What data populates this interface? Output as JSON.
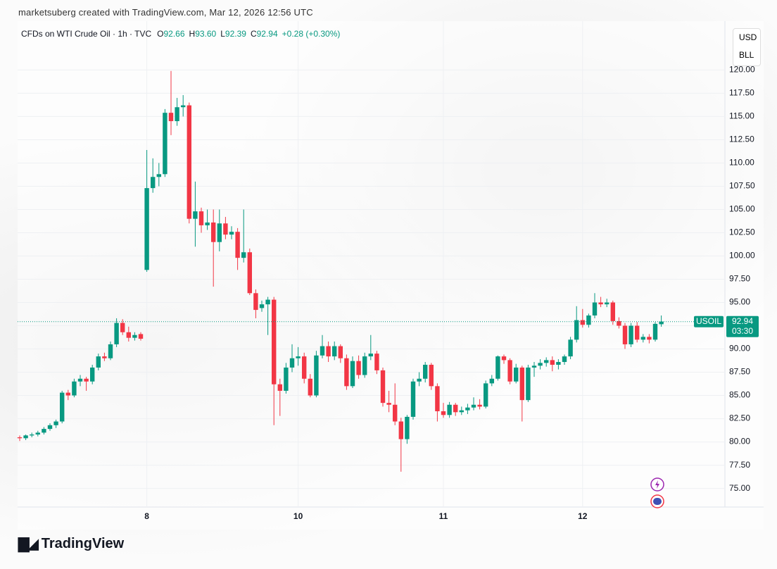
{
  "header": {
    "watermark": "marketsuberg created with TradingView.com, Mar 12, 2026 12:56 UTC",
    "symbol": "CFDs on WTI Crude Oil · 1h · TVC",
    "fields": [
      {
        "key": "O",
        "value": "92.66"
      },
      {
        "key": "H",
        "value": "93.60"
      },
      {
        "key": "L",
        "value": "92.39"
      },
      {
        "key": "C",
        "value": "92.94"
      }
    ],
    "change": "+0.28 (+0.30%)",
    "units": [
      "USD",
      "BLL"
    ],
    "brand": "TradingView"
  },
  "chart_data": {
    "type": "candlestick",
    "up_color": "#089981",
    "down_color": "#f23645",
    "ticker": "USOIL",
    "countdown": "03:30",
    "ylim": [
      73,
      124.5
    ],
    "yticks": [
      {
        "value": 75,
        "label": "75.00"
      },
      {
        "value": 77.5,
        "label": "77.50"
      },
      {
        "value": 80,
        "label": "80.00"
      },
      {
        "value": 82.5,
        "label": "82.50"
      },
      {
        "value": 85,
        "label": "85.00"
      },
      {
        "value": 87.5,
        "label": "87.50"
      },
      {
        "value": 90,
        "label": "90.00"
      },
      {
        "value": 92.5,
        "label": "92.50"
      },
      {
        "value": 95,
        "label": "95.00"
      },
      {
        "value": 97.5,
        "label": "97.50"
      },
      {
        "value": 100,
        "label": "100.00"
      },
      {
        "value": 102.5,
        "label": "102.50"
      },
      {
        "value": 105,
        "label": "105.00"
      },
      {
        "value": 107.5,
        "label": "107.50"
      },
      {
        "value": 110,
        "label": "110.00"
      },
      {
        "value": 112.5,
        "label": "112.50"
      },
      {
        "value": 115,
        "label": "115.00"
      },
      {
        "value": 117.5,
        "label": "117.50"
      },
      {
        "value": 120,
        "label": "120.00"
      }
    ],
    "categories": [
      null,
      null,
      null,
      null,
      null,
      null,
      null,
      null,
      null,
      null,
      null,
      null,
      null,
      null,
      null,
      null,
      null,
      null,
      null,
      null,
      null,
      "8",
      null,
      null,
      null,
      null,
      null,
      null,
      null,
      null,
      null,
      null,
      null,
      null,
      null,
      null,
      null,
      null,
      null,
      null,
      null,
      null,
      null,
      null,
      null,
      null,
      "10",
      null,
      null,
      null,
      null,
      null,
      null,
      null,
      null,
      null,
      null,
      null,
      null,
      null,
      null,
      null,
      null,
      null,
      null,
      null,
      null,
      null,
      null,
      null,
      "11",
      null,
      null,
      null,
      null,
      null,
      null,
      null,
      null,
      null,
      null,
      null,
      null,
      null,
      null,
      null,
      null,
      null,
      null,
      null,
      null,
      null,
      null,
      "12",
      null,
      null,
      null,
      null,
      null,
      null,
      null,
      null,
      null,
      null,
      null,
      null,
      null
    ],
    "ohlc": [
      [
        80.5,
        80.7,
        80.1,
        80.4
      ],
      [
        80.4,
        80.8,
        80.2,
        80.7
      ],
      [
        80.7,
        81.0,
        80.5,
        80.8
      ],
      [
        80.8,
        81.2,
        80.6,
        81.0
      ],
      [
        81.0,
        81.6,
        80.8,
        81.4
      ],
      [
        81.4,
        82.0,
        81.2,
        81.8
      ],
      [
        81.8,
        82.4,
        81.5,
        82.2
      ],
      [
        82.2,
        85.5,
        82.0,
        85.3
      ],
      [
        85.3,
        85.6,
        84.5,
        85.0
      ],
      [
        85.0,
        86.8,
        84.8,
        86.5
      ],
      [
        86.5,
        87.2,
        86.0,
        86.8
      ],
      [
        86.8,
        87.0,
        85.5,
        86.5
      ],
      [
        86.5,
        88.3,
        86.2,
        88.0
      ],
      [
        88.0,
        89.5,
        87.7,
        89.2
      ],
      [
        89.2,
        89.6,
        88.7,
        89.0
      ],
      [
        89.0,
        90.8,
        88.8,
        90.5
      ],
      [
        90.5,
        93.3,
        90.2,
        92.8
      ],
      [
        92.8,
        93.2,
        91.5,
        91.8
      ],
      [
        91.8,
        92.4,
        90.8,
        91.2
      ],
      [
        91.2,
        91.8,
        90.9,
        91.5
      ],
      [
        91.6,
        91.8,
        90.9,
        91.1
      ],
      [
        98.5,
        111.4,
        98.3,
        107.3
      ],
      [
        107.3,
        110.5,
        106.8,
        108.5
      ],
      [
        108.5,
        110.0,
        107.5,
        108.8
      ],
      [
        108.8,
        115.8,
        108.5,
        115.4
      ],
      [
        115.4,
        119.9,
        113.0,
        114.5
      ],
      [
        114.5,
        117.0,
        114.0,
        116.0
      ],
      [
        116.0,
        117.3,
        115.0,
        116.2
      ],
      [
        116.2,
        116.5,
        103.5,
        104.0
      ],
      [
        104.0,
        108.0,
        101.0,
        104.8
      ],
      [
        104.8,
        105.2,
        102.5,
        103.3
      ],
      [
        103.3,
        105.0,
        102.8,
        103.6
      ],
      [
        103.6,
        105.0,
        96.7,
        101.5
      ],
      [
        101.5,
        105.0,
        100.5,
        103.5
      ],
      [
        103.5,
        104.2,
        101.8,
        102.3
      ],
      [
        102.3,
        103.2,
        101.8,
        102.6
      ],
      [
        102.6,
        103.0,
        98.5,
        99.8
      ],
      [
        99.8,
        105.0,
        99.3,
        100.4
      ],
      [
        100.4,
        100.8,
        95.8,
        96.0
      ],
      [
        96.0,
        96.4,
        93.3,
        94.2
      ],
      [
        94.4,
        95.2,
        94.0,
        94.8
      ],
      [
        94.8,
        95.6,
        91.5,
        95.3
      ],
      [
        95.3,
        95.6,
        81.8,
        86.2
      ],
      [
        86.2,
        86.8,
        82.8,
        85.5
      ],
      [
        85.5,
        88.5,
        85.2,
        88.0
      ],
      [
        88.0,
        90.5,
        87.5,
        89.0
      ],
      [
        89.0,
        90.2,
        88.2,
        89.2
      ],
      [
        89.2,
        89.6,
        86.3,
        86.8
      ],
      [
        86.8,
        87.3,
        84.8,
        85.0
      ],
      [
        85.0,
        89.8,
        84.8,
        89.3
      ],
      [
        89.3,
        91.5,
        89.0,
        90.3
      ],
      [
        90.3,
        90.8,
        88.6,
        89.2
      ],
      [
        89.2,
        90.8,
        88.8,
        90.3
      ],
      [
        90.3,
        90.5,
        88.5,
        89.0
      ],
      [
        89.0,
        89.4,
        85.6,
        86.0
      ],
      [
        86.0,
        89.2,
        85.8,
        88.7
      ],
      [
        88.7,
        89.3,
        86.8,
        87.2
      ],
      [
        87.2,
        89.6,
        86.9,
        89.2
      ],
      [
        89.2,
        91.5,
        88.8,
        89.5
      ],
      [
        89.5,
        89.8,
        87.3,
        87.7
      ],
      [
        87.7,
        88.0,
        83.8,
        84.2
      ],
      [
        84.2,
        85.5,
        83.2,
        84.0
      ],
      [
        84.0,
        86.3,
        81.8,
        82.2
      ],
      [
        82.2,
        82.6,
        76.8,
        80.3
      ],
      [
        80.3,
        82.9,
        79.8,
        82.7
      ],
      [
        82.7,
        86.8,
        82.4,
        86.5
      ],
      [
        86.5,
        87.5,
        86.0,
        86.8
      ],
      [
        86.8,
        88.6,
        86.4,
        88.3
      ],
      [
        88.3,
        88.5,
        85.6,
        86.0
      ],
      [
        86.0,
        86.3,
        82.2,
        83.3
      ],
      [
        83.3,
        84.2,
        82.6,
        82.9
      ],
      [
        82.9,
        84.3,
        82.6,
        84.0
      ],
      [
        84.0,
        84.2,
        82.8,
        83.2
      ],
      [
        83.2,
        83.8,
        82.9,
        83.4
      ],
      [
        83.4,
        84.1,
        83.0,
        83.7
      ],
      [
        83.7,
        84.8,
        83.4,
        84.0
      ],
      [
        84.0,
        84.6,
        83.5,
        83.8
      ],
      [
        83.8,
        86.6,
        83.6,
        86.3
      ],
      [
        86.3,
        87.2,
        86.0,
        86.8
      ],
      [
        86.8,
        89.3,
        86.6,
        89.2
      ],
      [
        89.2,
        89.4,
        88.4,
        88.8
      ],
      [
        88.8,
        89.0,
        86.2,
        86.5
      ],
      [
        86.5,
        88.4,
        86.3,
        88.0
      ],
      [
        88.0,
        88.2,
        82.2,
        84.5
      ],
      [
        84.5,
        88.3,
        84.3,
        88.0
      ],
      [
        88.0,
        88.6,
        87.0,
        88.2
      ],
      [
        88.2,
        88.9,
        87.8,
        88.5
      ],
      [
        88.5,
        89.1,
        88.1,
        88.8
      ],
      [
        88.8,
        89.2,
        87.6,
        88.3
      ],
      [
        88.3,
        88.9,
        87.8,
        88.6
      ],
      [
        88.6,
        89.4,
        88.3,
        89.2
      ],
      [
        89.2,
        91.3,
        88.9,
        91.0
      ],
      [
        91.0,
        94.6,
        90.7,
        93.1
      ],
      [
        93.1,
        94.3,
        92.3,
        92.6
      ],
      [
        92.6,
        93.8,
        92.3,
        93.6
      ],
      [
        93.6,
        96.0,
        93.3,
        95.0
      ],
      [
        95.0,
        95.6,
        94.5,
        94.8
      ],
      [
        94.8,
        95.4,
        94.5,
        95.0
      ],
      [
        95.0,
        95.2,
        92.6,
        93.0
      ],
      [
        93.0,
        93.4,
        92.2,
        92.5
      ],
      [
        92.5,
        92.8,
        90.0,
        90.5
      ],
      [
        90.5,
        92.8,
        90.2,
        92.5
      ],
      [
        92.5,
        92.9,
        90.7,
        91.0
      ],
      [
        91.0,
        91.6,
        90.7,
        91.3
      ],
      [
        91.3,
        91.6,
        90.6,
        91.0
      ],
      [
        91.0,
        92.9,
        90.8,
        92.7
      ],
      [
        92.66,
        93.6,
        92.39,
        92.94
      ]
    ]
  }
}
